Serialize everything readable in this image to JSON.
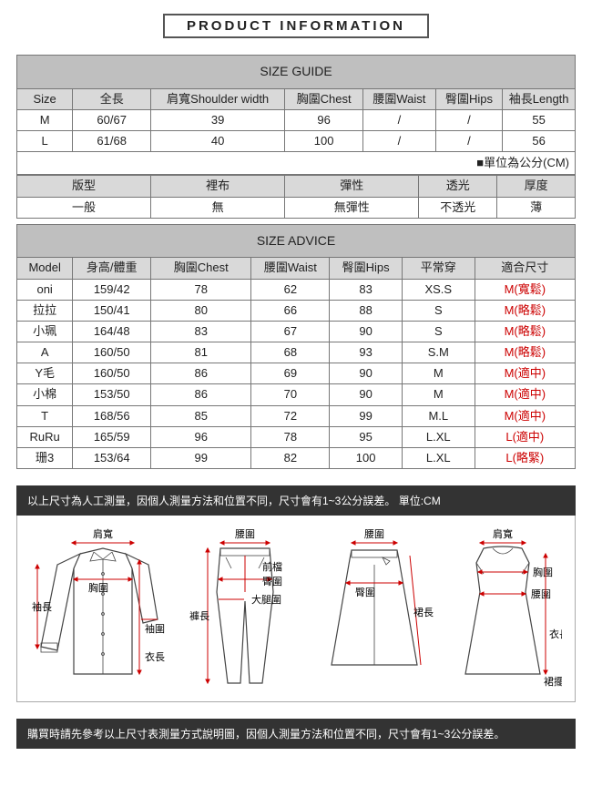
{
  "title": "PRODUCT INFORMATION",
  "sizeGuide": {
    "header": "SIZE GUIDE",
    "columns": [
      "Size",
      "全長",
      "肩寬Shoulder width",
      "胸圍Chest",
      "腰圍Waist",
      "臀圍Hips",
      "袖長Length"
    ],
    "rows": [
      [
        "M",
        "60/67",
        "39",
        "96",
        "/",
        "/",
        "55"
      ],
      [
        "L",
        "61/68",
        "40",
        "100",
        "/",
        "/",
        "56"
      ]
    ],
    "unitNote": "■單位為公分(CM)"
  },
  "properties": {
    "columns": [
      "版型",
      "裡布",
      "彈性",
      "透光",
      "厚度"
    ],
    "values": [
      "一般",
      "無",
      "無彈性",
      "不透光",
      "薄"
    ]
  },
  "sizeAdvice": {
    "header": "SIZE ADVICE",
    "columns": [
      "Model",
      "身高/體重",
      "胸圍Chest",
      "腰圍Waist",
      "臀圍Hips",
      "平常穿",
      "適合尺寸"
    ],
    "rows": [
      {
        "c": [
          "oni",
          "159/42",
          "78",
          "62",
          "83",
          "XS.S"
        ],
        "fit": "M(寬鬆)"
      },
      {
        "c": [
          "拉拉",
          "150/41",
          "80",
          "66",
          "88",
          "S"
        ],
        "fit": "M(略鬆)"
      },
      {
        "c": [
          "小珮",
          "164/48",
          "83",
          "67",
          "90",
          "S"
        ],
        "fit": "M(略鬆)"
      },
      {
        "c": [
          "A",
          "160/50",
          "81",
          "68",
          "93",
          "S.M"
        ],
        "fit": "M(略鬆)"
      },
      {
        "c": [
          "Y毛",
          "160/50",
          "86",
          "69",
          "90",
          "M"
        ],
        "fit": "M(適中)"
      },
      {
        "c": [
          "小棉",
          "153/50",
          "86",
          "70",
          "90",
          "M"
        ],
        "fit": "M(適中)"
      },
      {
        "c": [
          "T",
          "168/56",
          "85",
          "72",
          "99",
          "M.L"
        ],
        "fit": "M(適中)"
      },
      {
        "c": [
          "RuRu",
          "165/59",
          "96",
          "78",
          "95",
          "L.XL"
        ],
        "fit": "L(適中)"
      },
      {
        "c": [
          "珊3",
          "153/64",
          "99",
          "82",
          "100",
          "L.XL"
        ],
        "fit": "L(略緊)"
      }
    ]
  },
  "note1": "以上尺寸為人工測量，因個人測量方法和位置不同，尺寸會有1~3公分誤差。 單位:CM",
  "note2": "購買時請先參考以上尺寸表測量方式說明圖，因個人測量方法和位置不同，尺寸會有1~3公分誤差。",
  "diagramLabels": {
    "shoulder": "肩寬",
    "chest": "胸圍",
    "sleeve": "袖長",
    "cuff": "袖圍",
    "length": "衣長",
    "waist": "腰圍",
    "frontRise": "前檔",
    "hip": "臀圍",
    "thigh": "大腿圍",
    "pantLen": "褲長",
    "skirtLen": "裙長",
    "hem": "裙擺"
  }
}
